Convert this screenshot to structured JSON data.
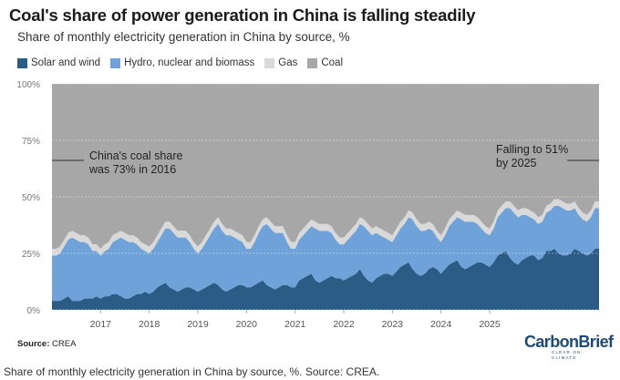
{
  "title": "Coal's share of power generation in China is falling steadily",
  "subtitle": "Share of monthly electricity generation in China by source, %",
  "legend": [
    {
      "label": "Solar and wind",
      "color": "#2b5c85"
    },
    {
      "label": "Hydro, nuclear and biomass",
      "color": "#6fa2d8"
    },
    {
      "label": "Gas",
      "color": "#d9d9d9"
    },
    {
      "label": "Coal",
      "color": "#a7a7a7"
    }
  ],
  "chart_data": {
    "type": "area",
    "stacked": true,
    "x_start": "2016-01",
    "x_step": "month",
    "x_ticks": [
      "2017",
      "2018",
      "2019",
      "2020",
      "2021",
      "2022",
      "2023",
      "2024",
      "2025"
    ],
    "ylim": [
      0,
      100
    ],
    "y_ticks": [
      "0%",
      "25%",
      "50%",
      "75%",
      "100%"
    ],
    "grid": true,
    "series": [
      {
        "name": "Solar and wind",
        "color": "#2b5c85",
        "values": [
          4,
          4,
          4,
          5,
          6,
          4,
          4,
          4,
          5,
          5,
          5,
          6,
          5,
          6,
          6,
          7,
          7,
          6,
          5,
          5,
          6,
          7,
          7,
          8,
          7,
          8,
          10,
          11,
          12,
          10,
          9,
          8,
          9,
          10,
          10,
          9,
          8,
          9,
          10,
          11,
          12,
          11,
          9,
          8,
          9,
          10,
          11,
          11,
          10,
          10,
          11,
          12,
          13,
          11,
          10,
          9,
          10,
          11,
          11,
          10,
          10,
          13,
          14,
          15,
          16,
          13,
          12,
          13,
          14,
          15,
          14,
          14,
          13,
          14,
          15,
          16,
          18,
          15,
          13,
          12,
          14,
          15,
          16,
          16,
          15,
          17,
          19,
          20,
          21,
          18,
          16,
          15,
          16,
          18,
          19,
          18,
          16,
          18,
          20,
          21,
          22,
          19,
          18,
          19,
          20,
          21,
          21,
          20,
          19,
          21,
          24,
          25,
          26,
          23,
          21,
          20,
          22,
          23,
          24,
          24,
          22,
          23,
          26,
          26,
          27,
          25,
          24,
          24,
          25,
          27,
          26,
          25,
          24,
          25,
          27,
          27
        ]
      },
      {
        "name": "Hydro, nuclear and biomass",
        "color": "#6fa2d8",
        "values": [
          20,
          20,
          21,
          23,
          25,
          28,
          27,
          26,
          25,
          24,
          21,
          20,
          19,
          20,
          21,
          23,
          24,
          26,
          26,
          25,
          24,
          22,
          20,
          18,
          18,
          19,
          20,
          22,
          24,
          26,
          25,
          24,
          23,
          22,
          20,
          18,
          17,
          18,
          20,
          22,
          24,
          27,
          26,
          25,
          24,
          22,
          20,
          19,
          17,
          17,
          19,
          22,
          24,
          27,
          26,
          25,
          24,
          23,
          19,
          17,
          17,
          18,
          19,
          20,
          21,
          23,
          23,
          22,
          21,
          19,
          17,
          15,
          16,
          17,
          18,
          19,
          20,
          22,
          22,
          21,
          20,
          18,
          16,
          15,
          15,
          16,
          17,
          18,
          20,
          22,
          21,
          20,
          19,
          18,
          16,
          14,
          14,
          15,
          17,
          18,
          19,
          21,
          21,
          20,
          19,
          17,
          15,
          14,
          14,
          15,
          17,
          18,
          19,
          22,
          22,
          21,
          20,
          19,
          17,
          16,
          16,
          16,
          17,
          18,
          19,
          21,
          21,
          20,
          19,
          18,
          16,
          15,
          15,
          16,
          18,
          18
        ]
      },
      {
        "name": "Gas",
        "color": "#d9d9d9",
        "values": [
          3,
          3,
          3,
          3,
          3,
          3,
          3,
          3,
          3,
          3,
          3,
          3,
          3,
          3,
          3,
          3,
          3,
          3,
          3,
          3,
          3,
          3,
          3,
          3,
          3,
          3,
          3,
          3,
          3,
          3,
          3,
          3,
          3,
          3,
          3,
          3,
          3,
          3,
          3,
          3,
          3,
          3,
          3,
          3,
          3,
          3,
          3,
          3,
          3,
          3,
          3,
          3,
          3,
          3,
          3,
          3,
          3,
          3,
          3,
          3,
          3,
          3,
          3,
          3,
          3,
          3,
          3,
          3,
          3,
          3,
          3,
          3,
          3,
          3,
          3,
          3,
          3,
          3,
          3,
          3,
          3,
          3,
          3,
          3,
          3,
          3,
          3,
          3,
          3,
          3,
          3,
          3,
          3,
          3,
          3,
          3,
          3,
          3,
          3,
          3,
          3,
          3,
          3,
          3,
          3,
          3,
          3,
          3,
          3,
          3,
          3,
          3,
          3,
          3,
          3,
          3,
          3,
          3,
          3,
          3,
          3,
          3,
          3,
          3,
          3,
          3,
          3,
          3,
          3,
          3,
          3,
          3,
          3,
          3,
          3,
          3
        ]
      },
      {
        "name": "Coal",
        "color": "#a7a7a7",
        "values": [
          73,
          73,
          72,
          69,
          66,
          65,
          66,
          67,
          67,
          68,
          71,
          71,
          73,
          71,
          70,
          67,
          66,
          65,
          66,
          67,
          67,
          68,
          70,
          71,
          72,
          70,
          67,
          64,
          61,
          61,
          63,
          65,
          65,
          65,
          67,
          70,
          72,
          70,
          67,
          64,
          61,
          59,
          62,
          64,
          64,
          65,
          66,
          67,
          70,
          70,
          67,
          63,
          60,
          59,
          61,
          63,
          63,
          63,
          67,
          70,
          70,
          66,
          64,
          62,
          60,
          61,
          62,
          62,
          62,
          63,
          66,
          68,
          68,
          66,
          64,
          62,
          59,
          60,
          62,
          64,
          63,
          64,
          65,
          66,
          67,
          64,
          61,
          59,
          56,
          57,
          60,
          62,
          62,
          61,
          62,
          65,
          67,
          64,
          60,
          58,
          56,
          57,
          58,
          58,
          58,
          59,
          61,
          63,
          64,
          61,
          56,
          54,
          52,
          52,
          54,
          56,
          55,
          55,
          56,
          57,
          59,
          58,
          54,
          53,
          51,
          51,
          52,
          53,
          53,
          52,
          55,
          57,
          58,
          56,
          52,
          52
        ]
      }
    ],
    "annotations": [
      {
        "text": "China's coal share was 73% in 2016"
      },
      {
        "text": "Falling to 51% by 2025"
      }
    ]
  },
  "source": {
    "label": "Source:",
    "text": " CREA"
  },
  "logo": {
    "text": "CarbonBrief",
    "tagline": "CLEAR ON CLIMATE"
  },
  "caption": "Share of monthly electricity generation in China by source, %. Source: CREA."
}
